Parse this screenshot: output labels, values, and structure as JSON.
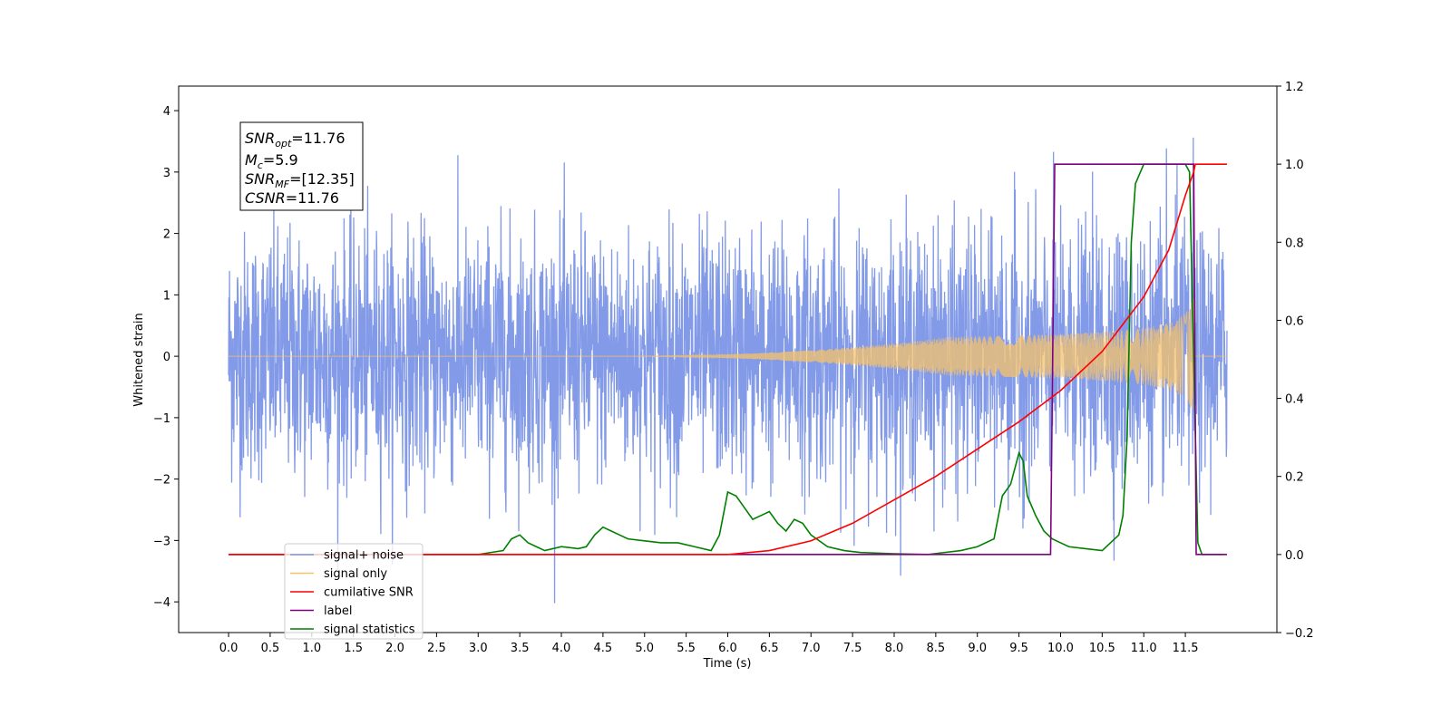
{
  "chart_data": {
    "type": "line",
    "xlabel": "Time (s)",
    "ylabel": "Whitened strain",
    "xlim": [
      -0.6,
      12.6
    ],
    "ylim": [
      -4.5,
      4.4
    ],
    "y2lim": [
      -0.2,
      1.2
    ],
    "x_ticks": [
      "0.0",
      "0.5",
      "1.0",
      "1.5",
      "2.0",
      "2.5",
      "3.0",
      "3.5",
      "4.0",
      "4.5",
      "5.0",
      "5.5",
      "6.0",
      "6.5",
      "7.0",
      "7.5",
      "8.0",
      "8.5",
      "9.0",
      "9.5",
      "10.0",
      "10.5",
      "11.0",
      "11.5"
    ],
    "y_ticks": [
      "4",
      "3",
      "2",
      "1",
      "0",
      "−1",
      "−2",
      "−3",
      "−4"
    ],
    "y2_ticks": [
      "1.2",
      "1.0",
      "0.8",
      "0.6",
      "0.4",
      "0.2",
      "0.0",
      "−0.2"
    ],
    "legend_position": "lower-left",
    "annotation": {
      "snr_opt": {
        "base": "SNR",
        "sub": "opt",
        "value": "=11.76"
      },
      "mc": {
        "base": "M",
        "sub": "c",
        "value": "=5.9"
      },
      "snr_mf": {
        "base": "SNR",
        "sub": "MF",
        "value": "=[12.35]"
      },
      "csnr": {
        "base": "CSNR",
        "value": "=11.76"
      }
    },
    "series": [
      {
        "name": "signal+ noise",
        "color": "#7b95e6",
        "axis": "left",
        "x_range": [
          0.0,
          12.0
        ],
        "std": 1.0
      },
      {
        "name": "signal only",
        "color": "#f5c26b",
        "axis": "left",
        "x_range": [
          0.0,
          12.0
        ],
        "merger_time": 11.6,
        "peak_amplitude": 1.1
      },
      {
        "name": "cumilative SNR",
        "color": "#ff0000",
        "axis": "right",
        "x": [
          0.0,
          6.0,
          6.5,
          7.0,
          7.5,
          8.0,
          8.5,
          9.0,
          9.5,
          10.0,
          10.5,
          11.0,
          11.3,
          11.5,
          11.6,
          11.62,
          12.0
        ],
        "y": [
          0.0,
          0.0,
          0.01,
          0.035,
          0.08,
          0.14,
          0.2,
          0.27,
          0.34,
          0.42,
          0.52,
          0.66,
          0.78,
          0.92,
          0.98,
          1.0,
          1.0
        ]
      },
      {
        "name": "label",
        "color": "#800080",
        "axis": "right",
        "x": [
          0.0,
          9.88,
          9.93,
          11.6,
          11.63,
          12.0
        ],
        "y": [
          0.0,
          0.0,
          1.0,
          1.0,
          0.0,
          0.0
        ]
      },
      {
        "name": "signal statistics",
        "color": "#008000",
        "axis": "right",
        "x": [
          0.0,
          3.0,
          3.3,
          3.4,
          3.5,
          3.6,
          3.7,
          3.8,
          4.0,
          4.2,
          4.3,
          4.4,
          4.5,
          4.6,
          4.7,
          4.8,
          5.0,
          5.2,
          5.4,
          5.6,
          5.8,
          5.9,
          6.0,
          6.1,
          6.2,
          6.3,
          6.4,
          6.5,
          6.6,
          6.7,
          6.8,
          6.9,
          7.0,
          7.2,
          7.4,
          7.6,
          8.0,
          8.4,
          8.8,
          9.0,
          9.2,
          9.3,
          9.4,
          9.5,
          9.55,
          9.6,
          9.7,
          9.8,
          9.9,
          10.0,
          10.1,
          10.3,
          10.5,
          10.6,
          10.7,
          10.75,
          10.8,
          10.85,
          10.9,
          11.0,
          11.2,
          11.5,
          11.55,
          11.6,
          11.65,
          11.7,
          11.8,
          11.95
        ],
        "y": [
          0.0,
          0.0,
          0.01,
          0.04,
          0.05,
          0.03,
          0.02,
          0.01,
          0.02,
          0.015,
          0.02,
          0.05,
          0.07,
          0.06,
          0.05,
          0.04,
          0.035,
          0.03,
          0.03,
          0.02,
          0.01,
          0.05,
          0.16,
          0.15,
          0.12,
          0.09,
          0.1,
          0.11,
          0.08,
          0.06,
          0.09,
          0.08,
          0.05,
          0.02,
          0.01,
          0.005,
          0.002,
          0.0,
          0.01,
          0.02,
          0.04,
          0.15,
          0.18,
          0.26,
          0.24,
          0.15,
          0.1,
          0.06,
          0.04,
          0.03,
          0.02,
          0.015,
          0.01,
          0.03,
          0.05,
          0.1,
          0.3,
          0.8,
          0.95,
          1.0,
          1.0,
          1.0,
          0.98,
          0.5,
          0.03,
          0.0,
          0.0,
          0.0
        ]
      }
    ]
  }
}
